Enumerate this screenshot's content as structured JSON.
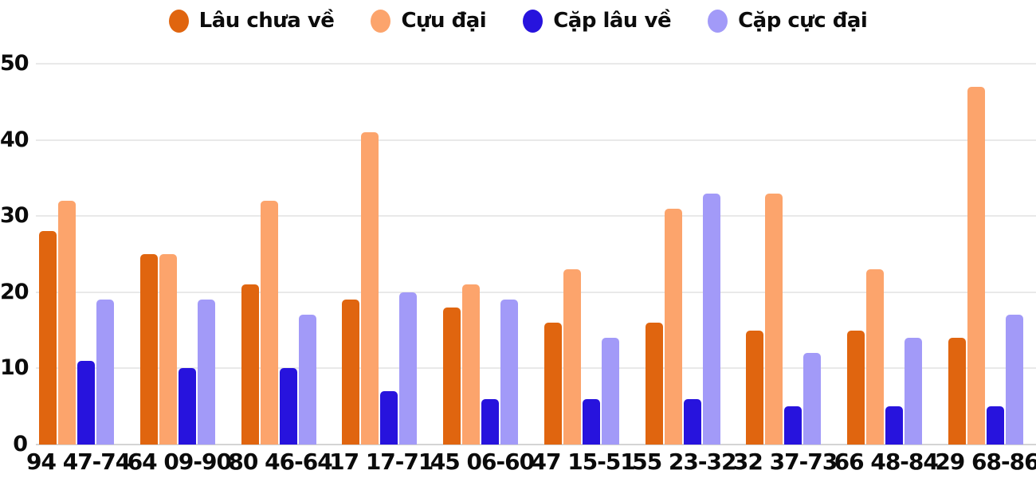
{
  "chart_data": {
    "type": "bar",
    "title": "",
    "xlabel": "",
    "ylabel": "",
    "categories": [
      "94 47-74",
      "64 09-90",
      "80 46-64",
      "17 17-71",
      "45 06-60",
      "47 15-51",
      "55 23-32",
      "32 37-73",
      "66 48-84",
      "29 68-86"
    ],
    "series": [
      {
        "name": "Lâu chưa về",
        "color": "#e0650f",
        "values": [
          28,
          25,
          21,
          19,
          18,
          16,
          16,
          15,
          15,
          14
        ]
      },
      {
        "name": "Cựu đại",
        "color": "#fca46c",
        "values": [
          32,
          25,
          32,
          41,
          21,
          23,
          31,
          33,
          23,
          47
        ]
      },
      {
        "name": "Cặp lâu về",
        "color": "#2713dd",
        "values": [
          11,
          10,
          10,
          7,
          6,
          6,
          6,
          5,
          5,
          5
        ]
      },
      {
        "name": "Cặp cực đại",
        "color": "#a29af8",
        "values": [
          19,
          19,
          17,
          20,
          19,
          14,
          33,
          12,
          14,
          17
        ]
      }
    ],
    "ylim": [
      0,
      50
    ],
    "yticks": [
      0,
      10,
      20,
      30,
      40,
      50
    ],
    "grid": true,
    "legend_position": "top",
    "colors": {
      "gridline": "#e9e9e9",
      "baseline": "#d4d4d4",
      "text": "#0b0b0b",
      "background": "#ffffff"
    }
  }
}
